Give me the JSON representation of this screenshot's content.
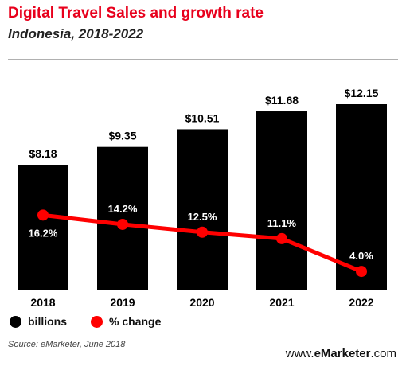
{
  "header": {
    "title": "Digital Travel Sales and growth rate",
    "subtitle": "Indonesia, 2018-2022"
  },
  "chart_data": {
    "type": "bar",
    "categories": [
      "2018",
      "2019",
      "2020",
      "2021",
      "2022"
    ],
    "series": [
      {
        "name": "billions",
        "type": "bar",
        "values": [
          8.18,
          9.35,
          10.51,
          11.68,
          12.15
        ],
        "labels": [
          "$8.18",
          "$9.35",
          "$10.51",
          "$11.68",
          "$12.15"
        ],
        "color": "#000000"
      },
      {
        "name": "% change",
        "type": "line",
        "values": [
          16.2,
          14.2,
          12.5,
          11.1,
          4.0
        ],
        "labels": [
          "16.2%",
          "14.2%",
          "12.5%",
          "11.1%",
          "4.0%"
        ],
        "color": "#ff0000"
      }
    ],
    "legend_position": "bottom-left",
    "grid": false
  },
  "legend": {
    "bars_label": "billions",
    "line_label": "% change"
  },
  "footer": {
    "source": "Source: eMarketer, June 2018",
    "brand_prefix": "www.",
    "brand_name": "eMarketer",
    "brand_suffix": ".com"
  }
}
